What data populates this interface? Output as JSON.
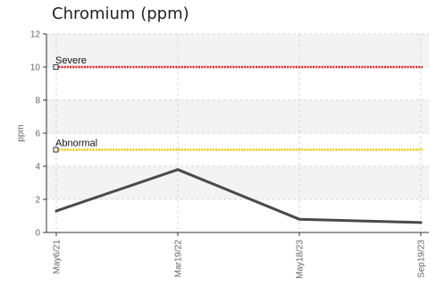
{
  "chart_data": {
    "type": "line",
    "title": "Chromium (ppm)",
    "ylabel": "ppm",
    "xlabel": "",
    "ylim": [
      0,
      12
    ],
    "yticks": [
      0,
      2,
      4,
      6,
      8,
      10,
      12
    ],
    "grid": true,
    "categories": [
      "May6/21",
      "Mar19/22",
      "May18/23",
      "Sep19/23"
    ],
    "series": [
      {
        "values": [
          1.3,
          3.8,
          0.8,
          0.6
        ],
        "color": "#4a4a4a"
      }
    ],
    "thresholds": [
      {
        "label": "Severe",
        "value": 10,
        "color": "#e8201c"
      },
      {
        "label": "Abnormal",
        "value": 5,
        "color": "#f2c500"
      }
    ]
  }
}
